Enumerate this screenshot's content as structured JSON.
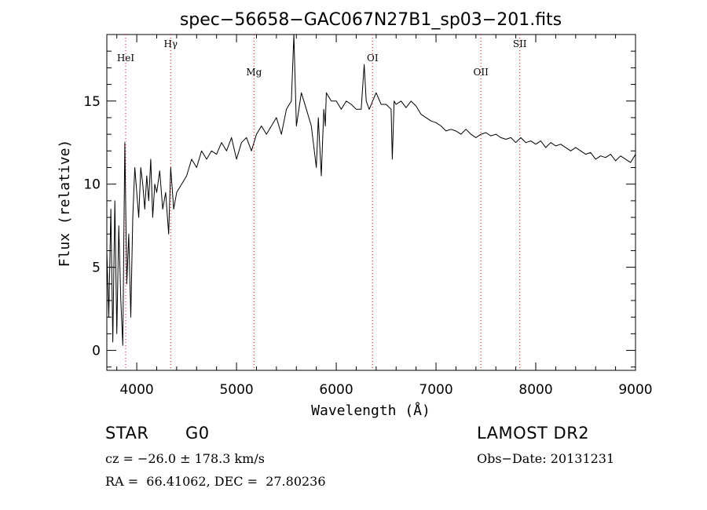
{
  "chart_data": {
    "type": "line",
    "title": "spec−56658−GAC067N27B1_sp03−201.fits",
    "xlabel": "Wavelength (Å)",
    "ylabel": "Flux (relative)",
    "xlim": [
      3700,
      9000
    ],
    "ylim": [
      -1.2,
      19.0
    ],
    "xticks": [
      4000,
      5000,
      6000,
      7000,
      8000,
      9000
    ],
    "yticks": [
      0,
      5,
      10,
      15
    ],
    "grid": false,
    "line_color": "#000000",
    "marker_color": "#ff0000",
    "lines": [
      {
        "label": "HeI",
        "wavelength": 3889
      },
      {
        "label": "Hγ",
        "wavelength": 4340
      },
      {
        "label": "Mg",
        "wavelength": 5175
      },
      {
        "label": "OI",
        "wavelength": 6364
      },
      {
        "label": "OII",
        "wavelength": 7450
      },
      {
        "label": "SII",
        "wavelength": 7840
      }
    ],
    "series": [
      {
        "x": [
          3700,
          3720,
          3740,
          3760,
          3780,
          3800,
          3820,
          3840,
          3860,
          3880,
          3900,
          3920,
          3940,
          3960,
          3980,
          4000,
          4020,
          4040,
          4060,
          4080,
          4100,
          4120,
          4140,
          4160,
          4180,
          4200,
          4230,
          4260,
          4290,
          4320,
          4340,
          4370,
          4400,
          4450,
          4500,
          4550,
          4600,
          4650,
          4700,
          4750,
          4800,
          4850,
          4900,
          4950,
          5000,
          5050,
          5100,
          5150,
          5200,
          5250,
          5300,
          5350,
          5400,
          5450,
          5500,
          5550,
          5575,
          5600,
          5650,
          5700,
          5750,
          5800,
          5820,
          5850,
          5875,
          5890,
          5900,
          5950,
          6000,
          6050,
          6100,
          6150,
          6200,
          6250,
          6280,
          6300,
          6330,
          6400,
          6450,
          6500,
          6550,
          6562,
          6580,
          6600,
          6650,
          6700,
          6750,
          6800,
          6850,
          6900,
          6950,
          7000,
          7050,
          7100,
          7150,
          7200,
          7250,
          7300,
          7350,
          7400,
          7450,
          7500,
          7550,
          7600,
          7650,
          7700,
          7750,
          7800,
          7850,
          7900,
          7950,
          8000,
          8050,
          8100,
          8150,
          8200,
          8250,
          8300,
          8350,
          8400,
          8450,
          8500,
          8550,
          8600,
          8650,
          8700,
          8750,
          8800,
          8850,
          8900,
          8950,
          9000
        ],
        "y": [
          6.0,
          2.0,
          8.5,
          0.5,
          9.0,
          1.0,
          7.5,
          3.0,
          0.3,
          12.5,
          4.0,
          7.0,
          2.0,
          8.0,
          11.0,
          9.5,
          8.0,
          11.0,
          10.0,
          8.5,
          10.5,
          9.0,
          11.5,
          8.0,
          10.0,
          9.5,
          10.8,
          8.5,
          9.5,
          7.0,
          11.0,
          8.5,
          9.5,
          10.0,
          10.5,
          11.5,
          11.0,
          12.0,
          11.5,
          12.0,
          11.8,
          12.5,
          12.0,
          12.8,
          11.5,
          12.5,
          12.8,
          12.0,
          13.0,
          13.5,
          13.0,
          13.5,
          14.0,
          13.0,
          14.5,
          15.0,
          19.0,
          13.5,
          15.5,
          14.5,
          13.5,
          11.0,
          14.0,
          10.5,
          14.5,
          13.5,
          15.5,
          15.0,
          15.0,
          14.5,
          15.0,
          14.8,
          14.5,
          14.5,
          17.2,
          15.0,
          14.5,
          15.5,
          14.8,
          14.8,
          14.5,
          11.5,
          15.0,
          14.8,
          15.0,
          14.6,
          15.0,
          14.7,
          14.2,
          14.0,
          13.8,
          13.7,
          13.5,
          13.2,
          13.3,
          13.2,
          13.0,
          13.3,
          13.0,
          12.8,
          13.0,
          13.1,
          12.9,
          13.0,
          12.8,
          12.7,
          12.8,
          12.5,
          12.8,
          12.5,
          12.6,
          12.4,
          12.6,
          12.2,
          12.5,
          12.3,
          12.4,
          12.2,
          12.0,
          12.2,
          12.0,
          11.8,
          11.9,
          11.5,
          11.7,
          11.6,
          11.8,
          11.4,
          11.7,
          11.5,
          11.3,
          11.8
        ]
      }
    ]
  },
  "info": {
    "object_class": "STAR",
    "subclass": "G0",
    "survey": "LAMOST DR2",
    "cz": "cz = −26.0 ± 178.3 km/s",
    "obs_date": "Obs−Date: 20131231",
    "coords": "RA =  66.41062, DEC =  27.80236"
  }
}
